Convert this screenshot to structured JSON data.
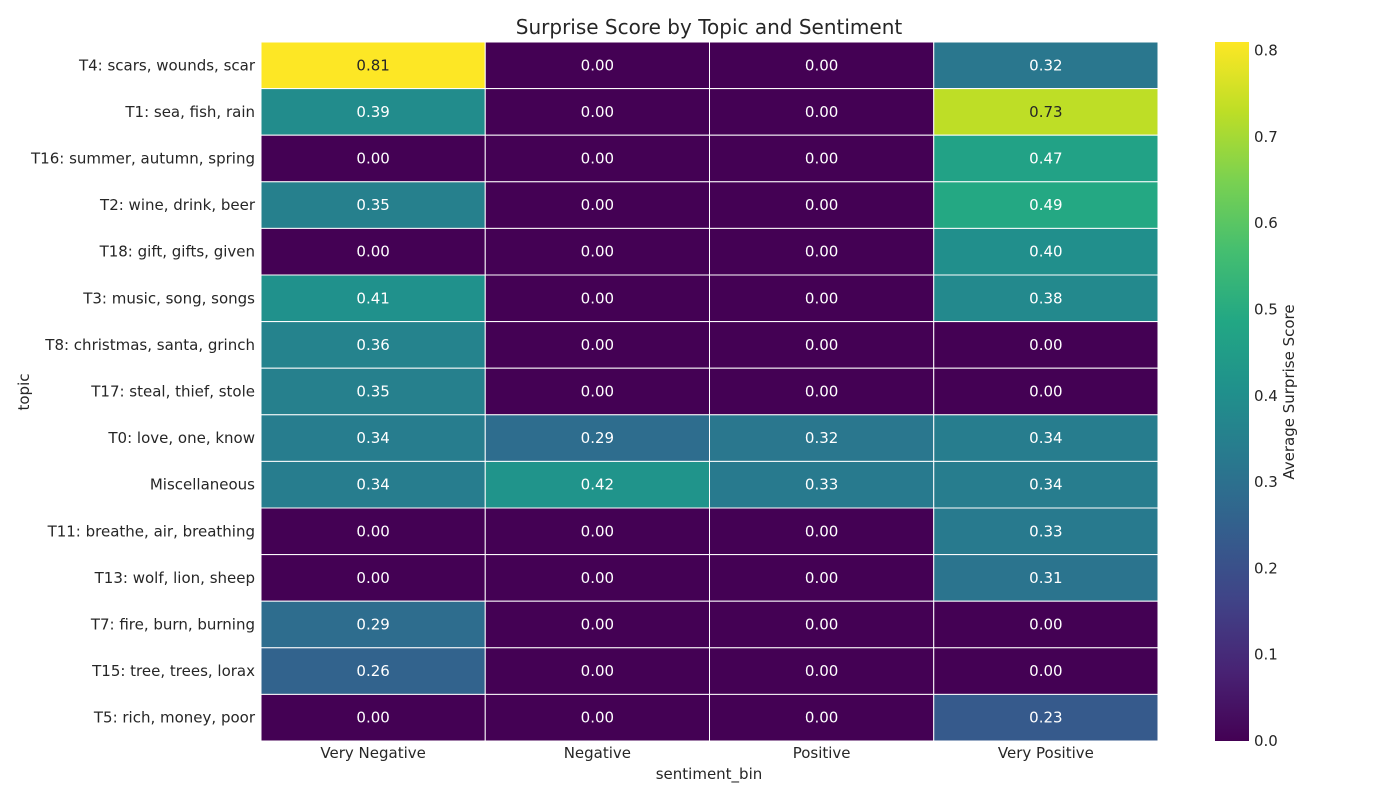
{
  "chart_data": {
    "type": "heatmap",
    "title": "Surprise Score by Topic and Sentiment",
    "xlabel": "sentiment_bin",
    "ylabel": "topic",
    "x_categories": [
      "Very Negative",
      "Negative",
      "Positive",
      "Very Positive"
    ],
    "y_categories": [
      "T4: scars, wounds, scar",
      "T1: sea, fish, rain",
      "T16: summer, autumn, spring",
      "T2: wine, drink, beer",
      "T18: gift, gifts, given",
      "T3: music, song, songs",
      "T8: christmas, santa, grinch",
      "T17: steal, thief, stole",
      "T0: love, one, know",
      "Miscellaneous",
      "T11: breathe, air, breathing",
      "T13: wolf, lion, sheep",
      "T7: fire, burn, burning",
      "T15: tree, trees, lorax",
      "T5: rich, money, poor"
    ],
    "values": [
      [
        0.81,
        0.0,
        0.0,
        0.32
      ],
      [
        0.39,
        0.0,
        0.0,
        0.73
      ],
      [
        0.0,
        0.0,
        0.0,
        0.47
      ],
      [
        0.35,
        0.0,
        0.0,
        0.49
      ],
      [
        0.0,
        0.0,
        0.0,
        0.4
      ],
      [
        0.41,
        0.0,
        0.0,
        0.38
      ],
      [
        0.36,
        0.0,
        0.0,
        0.0
      ],
      [
        0.35,
        0.0,
        0.0,
        0.0
      ],
      [
        0.34,
        0.29,
        0.32,
        0.34
      ],
      [
        0.34,
        0.42,
        0.33,
        0.34
      ],
      [
        0.0,
        0.0,
        0.0,
        0.33
      ],
      [
        0.0,
        0.0,
        0.0,
        0.31
      ],
      [
        0.29,
        0.0,
        0.0,
        0.0
      ],
      [
        0.26,
        0.0,
        0.0,
        0.0
      ],
      [
        0.0,
        0.0,
        0.0,
        0.23
      ]
    ],
    "colorbar": {
      "label": "Average Surprise Score",
      "min": 0.0,
      "max": 0.81,
      "ticks": [
        "0.0",
        "0.1",
        "0.2",
        "0.3",
        "0.4",
        "0.5",
        "0.6",
        "0.7",
        "0.8"
      ],
      "colormap": "viridis"
    },
    "grid": false,
    "cell_border_color": "#ffffff"
  }
}
